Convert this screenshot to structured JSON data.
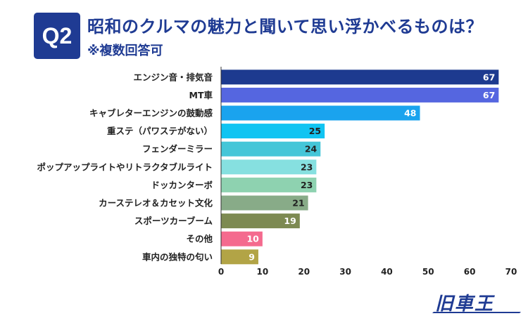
{
  "header": {
    "badge": "Q2",
    "title": "昭和のクルマの魅力と聞いて思い浮かべるものは？",
    "subtitle": "※複数回答可"
  },
  "logo": {
    "text": "旧車王",
    "color": "#1f3b93"
  },
  "chart_data": {
    "type": "bar",
    "orientation": "horizontal",
    "categories": [
      "エンジン音・排気音",
      "MT車",
      "キャブレターエンジンの鼓動感",
      "重ステ（パワステがない）",
      "フェンダーミラー",
      "ポップアップライトやリトラクタブルライト",
      "ドッカンターボ",
      "カーステレオ＆カセット文化",
      "スポーツカーブーム",
      "その他",
      "車内の独特の匂い"
    ],
    "values": [
      67,
      67,
      48,
      25,
      24,
      23,
      23,
      21,
      19,
      10,
      9
    ],
    "colors": [
      "#1d3a8f",
      "#5566e0",
      "#1aa3ee",
      "#10c4f2",
      "#45c6d8",
      "#86e0e0",
      "#8ed2b0",
      "#88ab88",
      "#7d8a52",
      "#f46a8e",
      "#b2a446"
    ],
    "value_label_colors": [
      "#ffffff",
      "#ffffff",
      "#ffffff",
      "#222222",
      "#222222",
      "#222222",
      "#222222",
      "#222222",
      "#ffffff",
      "#ffffff",
      "#ffffff"
    ],
    "xlim": [
      0,
      70
    ],
    "x_ticks": [
      0,
      10,
      20,
      30,
      40,
      50,
      60,
      70
    ],
    "grid": false,
    "legend": "none"
  }
}
